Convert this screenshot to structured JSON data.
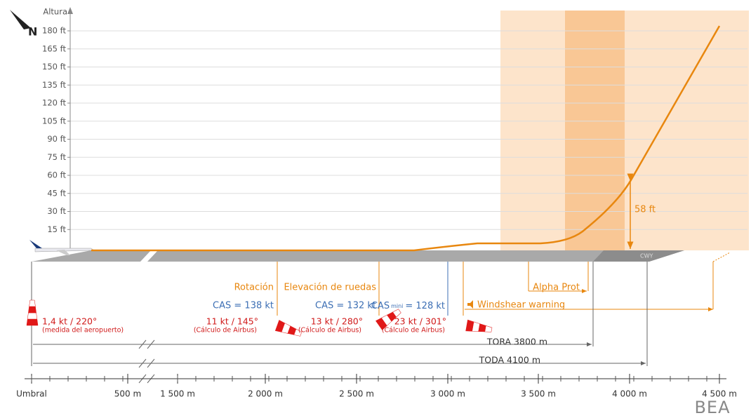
{
  "axis": {
    "y_title": "Altura",
    "y_ticks": [
      "180 ft",
      "165 ft",
      "150 ft",
      "135 ft",
      "120 ft",
      "105 ft",
      "90 ft",
      "75 ft",
      "60 ft",
      "45 ft",
      "30 ft",
      "15 ft"
    ],
    "x_ticks": [
      "Umbral",
      "500 m",
      "1 500 m",
      "2 000 m",
      "2 500 m",
      "3 000 m",
      "3 500 m",
      "4 000 m",
      "4 500 m"
    ]
  },
  "compass": "N",
  "annotations": {
    "rotation": "Rotación",
    "lift_off": "Elevación de ruedas",
    "cas_rotation": "CAS = 138 kt",
    "cas_lift_off": "CAS = 132 kt",
    "cas_min": {
      "label": "CAS",
      "sub": "mini",
      "value": "= 128 kt"
    },
    "windshear": "Windshear warning",
    "alpha_prot": "Alpha Prot",
    "height": "58 ft",
    "cwy": "CWY",
    "tora": "TORA 3800 m",
    "toda": "TODA 4100 m"
  },
  "winds": [
    {
      "value": "1,4 kt / 220°",
      "note": "(medida del aeropuerto)"
    },
    {
      "value": "11 kt / 145°",
      "note": "(Cálculo de Airbus)"
    },
    {
      "value": "13 kt / 280°",
      "note": "(Cálculo de Airbus)"
    },
    {
      "value": "23 kt / 301°",
      "note": "(Cálculo de Airbus)"
    }
  ],
  "logo": "BEA"
}
